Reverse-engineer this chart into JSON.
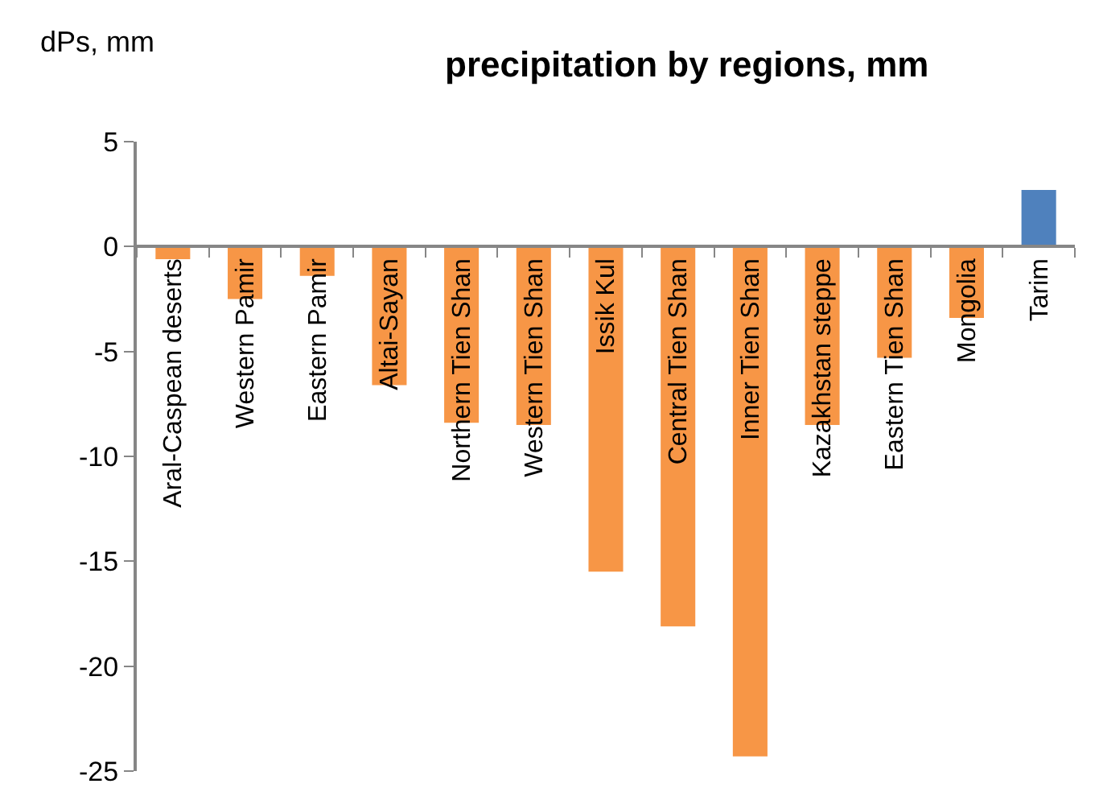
{
  "chart_data": {
    "type": "bar",
    "title": "precipitation by regions, mm",
    "ylabel": "dPs, mm",
    "categories": [
      "Aral-Caspean deserts",
      "Western Pamir",
      "Eastern Pamir",
      "Altai-Sayan",
      "Northern Tien Shan",
      "Western Tien Shan",
      "Issik Kul",
      "Central Tien Shan",
      "Inner Tien Shan",
      "Kazakhstan steppe",
      "Eastern Tien Shan",
      "Mongolia",
      "Tarim"
    ],
    "values": [
      -0.6,
      -2.5,
      -1.4,
      -6.6,
      -8.4,
      -8.5,
      -15.5,
      -18.1,
      -24.3,
      -8.5,
      -5.3,
      -3.4,
      2.7
    ],
    "colors": [
      "#f79646",
      "#f79646",
      "#f79646",
      "#f79646",
      "#f79646",
      "#f79646",
      "#f79646",
      "#f79646",
      "#f79646",
      "#f79646",
      "#f79646",
      "#f79646",
      "#4f81bd"
    ],
    "ylim": [
      -25,
      5
    ],
    "yticks": [
      -25,
      -20,
      -15,
      -10,
      -5,
      0,
      5
    ]
  }
}
